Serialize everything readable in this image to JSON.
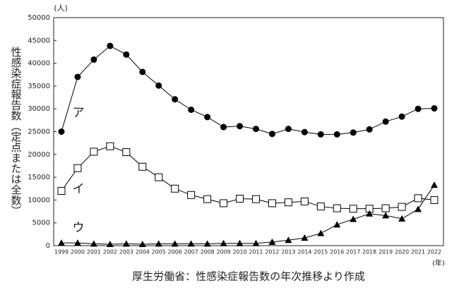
{
  "chart_data": {
    "type": "line",
    "y_unit": "(人)",
    "x_unit": "(年)",
    "ylabel": "性感染症報告数（定点または全数）",
    "source": "厚生労働省：性感染症報告数の年次推移より作成",
    "categories": [
      "1999",
      "2000",
      "2001",
      "2002",
      "2003",
      "2004",
      "2005",
      "2006",
      "2007",
      "2008",
      "2009",
      "2010",
      "2011",
      "2012",
      "2013",
      "2014",
      "2015",
      "2016",
      "2017",
      "2018",
      "2019",
      "2020",
      "2021",
      "2022"
    ],
    "ylim": [
      0,
      50000
    ],
    "yticks": [
      0,
      5000,
      10000,
      15000,
      20000,
      25000,
      30000,
      35000,
      40000,
      45000,
      50000
    ],
    "series": [
      {
        "name": "ア",
        "color": "#000000",
        "marker": "circle",
        "values": [
          25000,
          37000,
          40800,
          43800,
          41900,
          38100,
          35100,
          32100,
          29800,
          28200,
          26000,
          26200,
          25600,
          24500,
          25600,
          24900,
          24400,
          24400,
          24800,
          25500,
          27200,
          28300,
          30000,
          30100
        ]
      },
      {
        "name": "イ",
        "color": "#000000",
        "marker": "square",
        "values": [
          12000,
          17000,
          20600,
          21800,
          20500,
          17300,
          15000,
          12500,
          11100,
          10200,
          9300,
          10300,
          10200,
          9300,
          9500,
          9700,
          8600,
          8200,
          8100,
          8100,
          8200,
          8500,
          10400,
          10000
        ]
      },
      {
        "name": "ウ",
        "color": "#000000",
        "marker": "triangle",
        "values": [
          600,
          600,
          400,
          300,
          400,
          300,
          400,
          400,
          400,
          400,
          500,
          500,
          500,
          800,
          1200,
          1700,
          2700,
          4600,
          5800,
          7000,
          6600,
          5900,
          8000,
          13300
        ]
      }
    ]
  }
}
